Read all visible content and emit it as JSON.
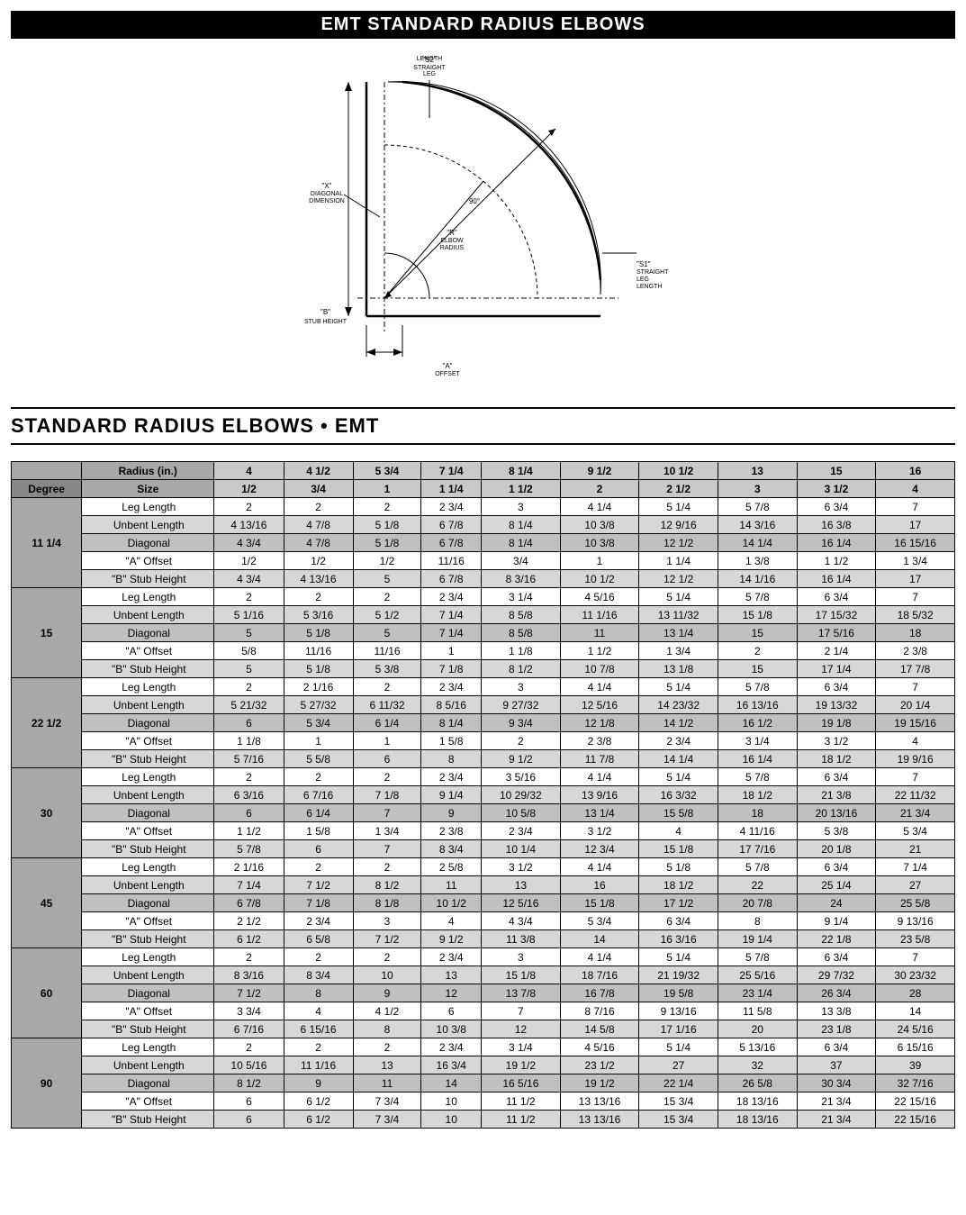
{
  "title": "EMT STANDARD RADIUS ELBOWS",
  "subtitle": "STANDARD RADIUS ELBOWS • EMT",
  "diagram_labels": {
    "s2": "\"S2\"\nSTRAIGHT\nLEG\nLENGTH",
    "x": "\"X\"\nDIAGONAL\nDIMENSION",
    "r": "\"R\"\nELBOW\nRADIUS",
    "s1": "\"S1\"\nSTRAIGHT\nLEG\nLENGTH",
    "b": "\"B\"\nSTUB HEIGHT",
    "a": "\"A\"\nOFFSET",
    "angle": "90°"
  },
  "headers": {
    "radius": "Radius (in.)",
    "degree": "Degree",
    "size": "Size",
    "radius_vals": [
      "4",
      "4 1/2",
      "5 3/4",
      "7 1/4",
      "8 1/4",
      "9 1/2",
      "10 1/2",
      "13",
      "15",
      "16"
    ],
    "size_vals": [
      "1/2",
      "3/4",
      "1",
      "1 1/4",
      "1 1/2",
      "2",
      "2 1/2",
      "3",
      "3 1/2",
      "4"
    ]
  },
  "params": [
    "Leg Length",
    "Unbent Length",
    "Diagonal",
    "\"A\" Offset",
    "\"B\" Stub Height"
  ],
  "row_shades": [
    "row-light",
    "row-dark",
    "row-mid",
    "row-light",
    "row-dark"
  ],
  "degrees": [
    "11 1/4",
    "15",
    "22 1/2",
    "30",
    "45",
    "60",
    "90"
  ],
  "data": {
    "11 1/4": [
      [
        "2",
        "2",
        "2",
        "2 3/4",
        "3",
        "4 1/4",
        "5 1/4",
        "5 7/8",
        "6 3/4",
        "7"
      ],
      [
        "4 13/16",
        "4 7/8",
        "5 1/8",
        "6 7/8",
        "8 1/4",
        "10 3/8",
        "12 9/16",
        "14 3/16",
        "16 3/8",
        "17"
      ],
      [
        "4 3/4",
        "4 7/8",
        "5 1/8",
        "6 7/8",
        "8 1/4",
        "10 3/8",
        "12 1/2",
        "14 1/4",
        "16 1/4",
        "16 15/16"
      ],
      [
        "1/2",
        "1/2",
        "1/2",
        "11/16",
        "3/4",
        "1",
        "1 1/4",
        "1 3/8",
        "1 1/2",
        "1 3/4"
      ],
      [
        "4 3/4",
        "4 13/16",
        "5",
        "6 7/8",
        "8 3/16",
        "10 1/2",
        "12 1/2",
        "14 1/16",
        "16 1/4",
        "17"
      ]
    ],
    "15": [
      [
        "2",
        "2",
        "2",
        "2 3/4",
        "3 1/4",
        "4 5/16",
        "5 1/4",
        "5 7/8",
        "6 3/4",
        "7"
      ],
      [
        "5 1/16",
        "5 3/16",
        "5 1/2",
        "7 1/4",
        "8 5/8",
        "11 1/16",
        "13 11/32",
        "15 1/8",
        "17 15/32",
        "18 5/32"
      ],
      [
        "5",
        "5 1/8",
        "5",
        "7 1/4",
        "8 5/8",
        "11",
        "13 1/4",
        "15",
        "17 5/16",
        "18"
      ],
      [
        "5/8",
        "11/16",
        "11/16",
        "1",
        "1 1/8",
        "1 1/2",
        "1 3/4",
        "2",
        "2 1/4",
        "2 3/8"
      ],
      [
        "5",
        "5 1/8",
        "5 3/8",
        "7 1/8",
        "8 1/2",
        "10 7/8",
        "13 1/8",
        "15",
        "17 1/4",
        "17 7/8"
      ]
    ],
    "22 1/2": [
      [
        "2",
        "2 1/16",
        "2",
        "2 3/4",
        "3",
        "4 1/4",
        "5 1/4",
        "5 7/8",
        "6 3/4",
        "7"
      ],
      [
        "5 21/32",
        "5 27/32",
        "6 11/32",
        "8 5/16",
        "9 27/32",
        "12 5/16",
        "14 23/32",
        "16 13/16",
        "19 13/32",
        "20 1/4"
      ],
      [
        "6",
        "5 3/4",
        "6 1/4",
        "8 1/4",
        "9 3/4",
        "12 1/8",
        "14 1/2",
        "16 1/2",
        "19 1/8",
        "19 15/16"
      ],
      [
        "1 1/8",
        "1",
        "1",
        "1 5/8",
        "2",
        "2 3/8",
        "2 3/4",
        "3 1/4",
        "3 1/2",
        "4"
      ],
      [
        "5 7/16",
        "5 5/8",
        "6",
        "8",
        "9 1/2",
        "11 7/8",
        "14 1/4",
        "16 1/4",
        "18 1/2",
        "19 9/16"
      ]
    ],
    "30": [
      [
        "2",
        "2",
        "2",
        "2 3/4",
        "3 5/16",
        "4 1/4",
        "5 1/4",
        "5 7/8",
        "6 3/4",
        "7"
      ],
      [
        "6 3/16",
        "6 7/16",
        "7 1/8",
        "9 1/4",
        "10 29/32",
        "13 9/16",
        "16 3/32",
        "18 1/2",
        "21 3/8",
        "22 11/32"
      ],
      [
        "6",
        "6 1/4",
        "7",
        "9",
        "10 5/8",
        "13 1/4",
        "15 5/8",
        "18",
        "20 13/16",
        "21 3/4"
      ],
      [
        "1 1/2",
        "1 5/8",
        "1 3/4",
        "2 3/8",
        "2 3/4",
        "3 1/2",
        "4",
        "4 11/16",
        "5 3/8",
        "5 3/4"
      ],
      [
        "5 7/8",
        "6",
        "7",
        "8 3/4",
        "10 1/4",
        "12 3/4",
        "15 1/8",
        "17 7/16",
        "20 1/8",
        "21"
      ]
    ],
    "45": [
      [
        "2 1/16",
        "2",
        "2",
        "2 5/8",
        "3 1/2",
        "4 1/4",
        "5 1/8",
        "5 7/8",
        "6 3/4",
        "7 1/4"
      ],
      [
        "7 1/4",
        "7 1/2",
        "8 1/2",
        "11",
        "13",
        "16",
        "18 1/2",
        "22",
        "25 1/4",
        "27"
      ],
      [
        "6 7/8",
        "7 1/8",
        "8 1/8",
        "10 1/2",
        "12 5/16",
        "15 1/8",
        "17 1/2",
        "20 7/8",
        "24",
        "25 5/8"
      ],
      [
        "2 1/2",
        "2 3/4",
        "3",
        "4",
        "4 3/4",
        "5 3/4",
        "6 3/4",
        "8",
        "9 1/4",
        "9 13/16"
      ],
      [
        "6 1/2",
        "6 5/8",
        "7 1/2",
        "9 1/2",
        "11 3/8",
        "14",
        "16 3/16",
        "19 1/4",
        "22 1/8",
        "23 5/8"
      ]
    ],
    "60": [
      [
        "2",
        "2",
        "2",
        "2 3/4",
        "3",
        "4 1/4",
        "5 1/4",
        "5 7/8",
        "6 3/4",
        "7"
      ],
      [
        "8 3/16",
        "8 3/4",
        "10",
        "13",
        "15 1/8",
        "18 7/16",
        "21 19/32",
        "25 5/16",
        "29 7/32",
        "30 23/32"
      ],
      [
        "7 1/2",
        "8",
        "9",
        "12",
        "13 7/8",
        "16 7/8",
        "19 5/8",
        "23 1/4",
        "26 3/4",
        "28"
      ],
      [
        "3 3/4",
        "4",
        "4 1/2",
        "6",
        "7",
        "8 7/16",
        "9 13/16",
        "11 5/8",
        "13 3/8",
        "14"
      ],
      [
        "6 7/16",
        "6 15/16",
        "8",
        "10 3/8",
        "12",
        "14 5/8",
        "17 1/16",
        "20",
        "23 1/8",
        "24 5/16"
      ]
    ],
    "90": [
      [
        "2",
        "2",
        "2",
        "2 3/4",
        "3 1/4",
        "4 5/16",
        "5 1/4",
        "5 13/16",
        "6 3/4",
        "6 15/16"
      ],
      [
        "10 5/16",
        "11 1/16",
        "13",
        "16 3/4",
        "19 1/2",
        "23 1/2",
        "27",
        "32",
        "37",
        "39"
      ],
      [
        "8 1/2",
        "9",
        "11",
        "14",
        "16 5/16",
        "19 1/2",
        "22 1/4",
        "26 5/8",
        "30 3/4",
        "32 7/16"
      ],
      [
        "6",
        "6 1/2",
        "7 3/4",
        "10",
        "11 1/2",
        "13 13/16",
        "15 3/4",
        "18 13/16",
        "21 3/4",
        "22 15/16"
      ],
      [
        "6",
        "6 1/2",
        "7 3/4",
        "10",
        "11 1/2",
        "13 13/16",
        "15 3/4",
        "18 13/16",
        "21 3/4",
        "22 15/16"
      ]
    ]
  }
}
